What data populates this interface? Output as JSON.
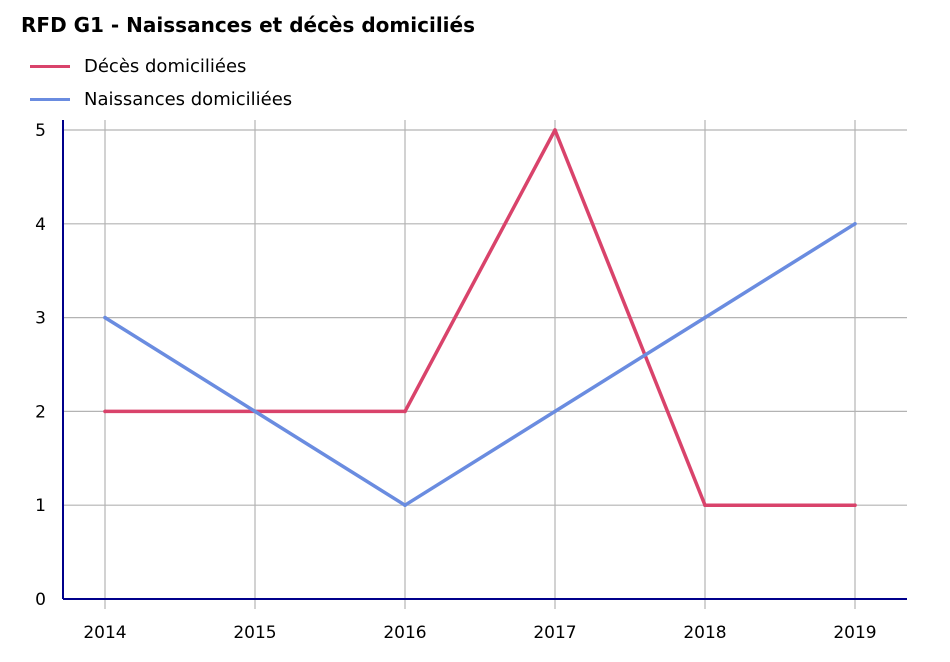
{
  "chart_data": {
    "type": "line",
    "title": "RFD G1 - Naissances et décès domiciliés",
    "xlabel": "",
    "ylabel": "",
    "x": [
      "2014",
      "2015",
      "2016",
      "2017",
      "2018",
      "2019"
    ],
    "ylim": [
      0,
      5
    ],
    "yticks": [
      "0",
      "1",
      "2",
      "3",
      "4",
      "5"
    ],
    "grid": true,
    "legend_position": "top-left",
    "series": [
      {
        "name": "Décès domiciliées",
        "color": "#d9436b",
        "values": [
          2,
          2,
          2,
          5,
          1,
          1
        ]
      },
      {
        "name": "Naissances domiciliées",
        "color": "#6a8ce0",
        "values": [
          3,
          2,
          1,
          2,
          3,
          4
        ]
      }
    ],
    "axis_color": "#00008b",
    "grid_color": "#b3b3b3"
  }
}
